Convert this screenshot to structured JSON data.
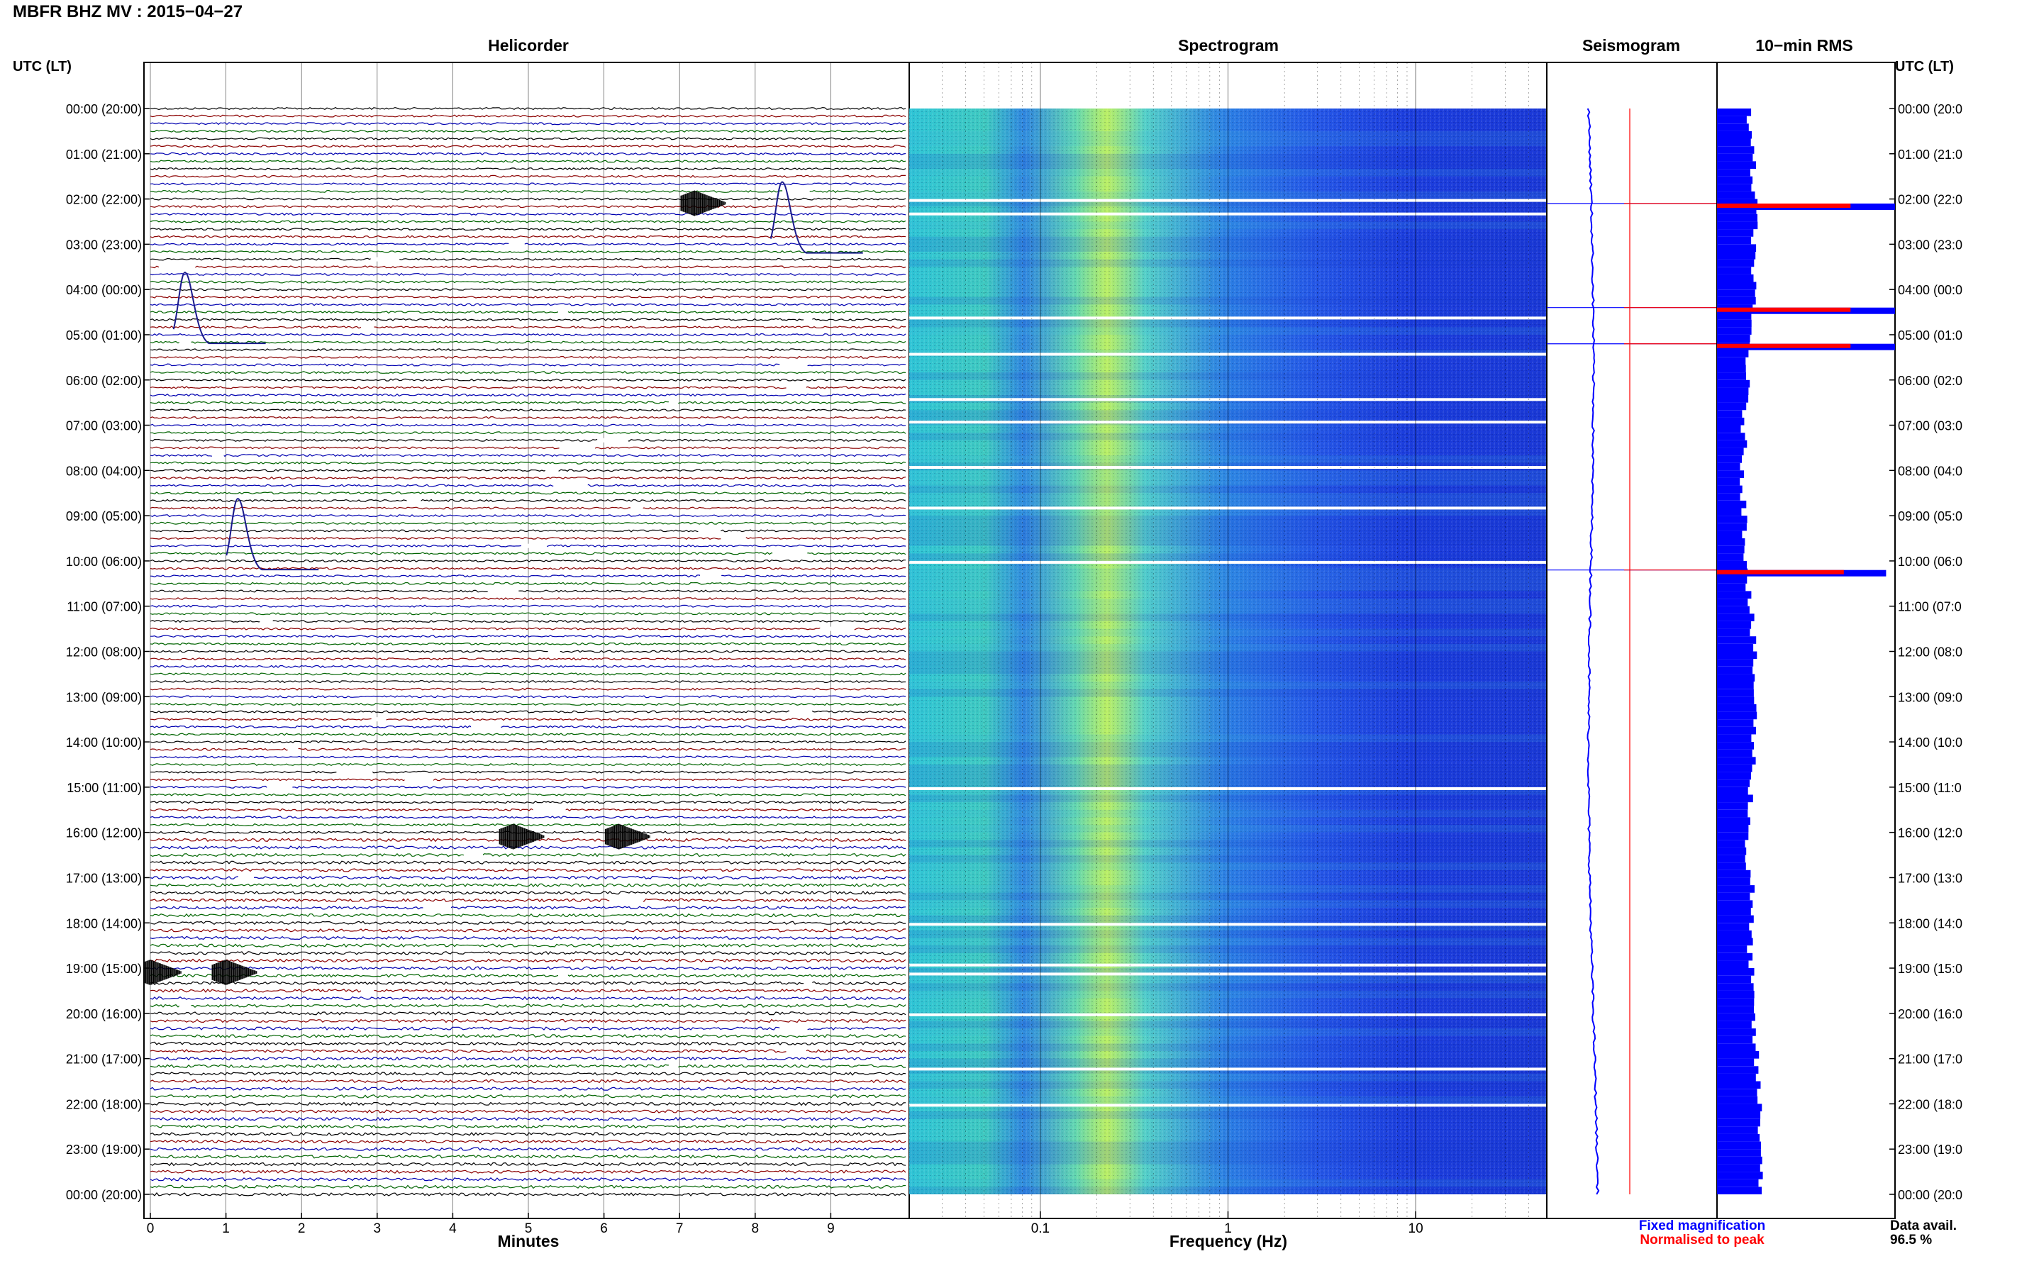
{
  "figure": {
    "title": "MBFR BHZ MV : 2015−04−27",
    "panel_titles": {
      "helicorder": "Helicorder",
      "spectrogram": "Spectrogram",
      "seismogram": "Seismogram",
      "rms": "10−min RMS"
    },
    "time_axis_title_left": "UTC (LT)",
    "time_axis_title_right": "UTC (LT)",
    "time_labels_left": [
      "00:00 (20:00)",
      "01:00 (21:00)",
      "02:00 (22:00)",
      "03:00 (23:00)",
      "04:00 (00:00)",
      "05:00 (01:00)",
      "06:00 (02:00)",
      "07:00 (03:00)",
      "08:00 (04:00)",
      "09:00 (05:00)",
      "10:00 (06:00)",
      "11:00 (07:00)",
      "12:00 (08:00)",
      "13:00 (09:00)",
      "14:00 (10:00)",
      "15:00 (11:00)",
      "16:00 (12:00)",
      "17:00 (13:00)",
      "18:00 (14:00)",
      "19:00 (15:00)",
      "20:00 (16:00)",
      "21:00 (17:00)",
      "22:00 (18:00)",
      "23:00 (19:00)",
      "00:00 (20:00)"
    ],
    "time_labels_right": [
      "00:00 (20:0",
      "01:00 (21:0",
      "02:00 (22:0",
      "03:00 (23:0",
      "04:00 (00:0",
      "05:00 (01:0",
      "06:00 (02:0",
      "07:00 (03:0",
      "08:00 (04:0",
      "09:00 (05:0",
      "10:00 (06:0",
      "11:00 (07:0",
      "12:00 (08:0",
      "13:00 (09:0",
      "14:00 (10:0",
      "15:00 (11:0",
      "16:00 (12:0",
      "17:00 (13:0",
      "18:00 (14:0",
      "19:00 (15:0",
      "20:00 (16:0",
      "21:00 (17:0",
      "22:00 (18:0",
      "23:00 (19:0",
      "00:00 (20:0"
    ],
    "legend": {
      "fixed": "Fixed magnification",
      "normalised": "Normalised to peak"
    },
    "data_avail_label": "Data avail.",
    "data_avail_value": "96.5 %",
    "colors": {
      "trace_cycle": [
        "#000000",
        "#8b0000",
        "#0000b0",
        "#006400"
      ],
      "seismogram_fixed": "#0000ff",
      "seismogram_normalised": "#ff0000",
      "rms_bar": "#0000ff",
      "rms_peak": "#ff0000",
      "spec_background": "#1a3fe0"
    }
  },
  "chart_data": [
    {
      "type": "line",
      "name": "helicorder",
      "title": "Helicorder",
      "xlabel": "Minutes",
      "x_ticks": [
        "0",
        "1",
        "2",
        "3",
        "4",
        "5",
        "6",
        "7",
        "8",
        "9"
      ],
      "xlim": [
        0,
        10
      ],
      "rows_per_hour": 6,
      "traces": 144,
      "events": [
        {
          "label_time": "02:00",
          "minute": 7.3
        },
        {
          "label_time": "02:00",
          "minute": 8.3
        },
        {
          "label_time": "04:00",
          "minute": 0.4
        },
        {
          "label_time": "09:00",
          "minute": 1.1
        },
        {
          "label_time": "16:00",
          "minute": 4.9
        },
        {
          "label_time": "16:00",
          "minute": 6.3
        },
        {
          "label_time": "19:00",
          "minute": 0.1
        },
        {
          "label_time": "19:00",
          "minute": 1.1
        }
      ]
    },
    {
      "type": "heatmap",
      "name": "spectrogram",
      "title": "Spectrogram",
      "xlabel": "Frequency (Hz)",
      "x_scale": "log",
      "xlim": [
        0.02,
        50
      ],
      "x_ticks": [
        "0.1",
        "1",
        "10"
      ],
      "gap_hours": [
        2.0,
        2.3,
        4.6,
        5.4,
        6.4,
        6.9,
        7.9,
        8.8,
        10.0,
        15.0,
        18.0,
        18.9,
        19.1,
        20.0,
        21.2,
        22.0
      ]
    },
    {
      "type": "line",
      "name": "seismogram",
      "title": "Seismogram",
      "series": [
        {
          "name": "Fixed magnification"
        },
        {
          "name": "Normalised to peak"
        }
      ]
    },
    {
      "type": "bar",
      "name": "rms",
      "title": "10−min RMS",
      "unit": "relative",
      "bins": 144,
      "peaks": [
        {
          "hour": 2.1,
          "relative": 1.0
        },
        {
          "hour": 4.4,
          "relative": 1.0
        },
        {
          "hour": 5.2,
          "relative": 1.0
        },
        {
          "hour": 10.2,
          "relative": 0.95
        }
      ],
      "data_availability_percent": 96.5
    }
  ]
}
